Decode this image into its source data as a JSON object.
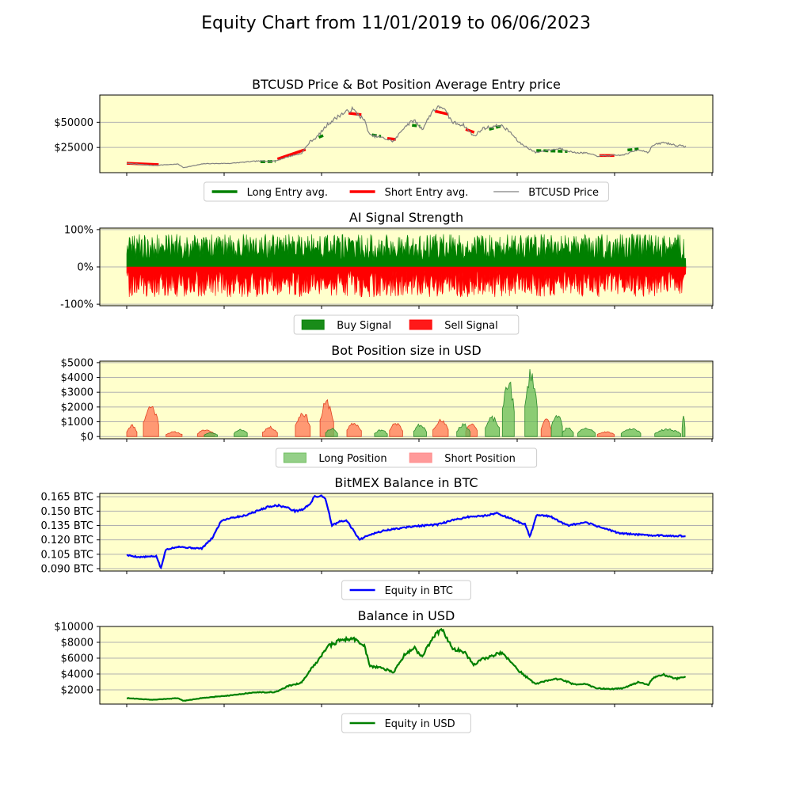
{
  "figure_title": "Equity Chart from 11/01/2019 to 06/06/2023",
  "colors": {
    "panel_background": "#ffffcc",
    "long": "#008000",
    "short": "#ff0000",
    "price": "#808080",
    "btc_equity": "#0000ff",
    "usd_equity": "#008000",
    "long_fill": "#66bb55",
    "short_fill": "#ff7755"
  },
  "chart_data": [
    {
      "type": "line",
      "title": "BTCUSD Price & Bot Position Average Entry price",
      "ylim": [
        0,
        77000
      ],
      "yticks": [
        25000,
        50000
      ],
      "ytick_labels": [
        "$25000",
        "$50000"
      ],
      "grid": "horizontal",
      "legend": {
        "placement": "below",
        "entries": [
          "Long Entry avg.",
          "Short Entry avg.",
          "BTCUSD Price"
        ]
      },
      "x": [
        "2019-11-01",
        "2020-01-01",
        "2020-03-01",
        "2020-03-13",
        "2020-05-01",
        "2020-07-01",
        "2020-09-01",
        "2020-10-15",
        "2020-11-15",
        "2020-12-15",
        "2021-01-05",
        "2021-01-20",
        "2021-02-15",
        "2021-03-15",
        "2021-04-14",
        "2021-05-12",
        "2021-05-25",
        "2021-06-20",
        "2021-07-20",
        "2021-08-15",
        "2021-09-06",
        "2021-09-25",
        "2021-10-20",
        "2021-11-10",
        "2021-12-05",
        "2022-01-01",
        "2022-01-24",
        "2022-02-15",
        "2022-03-28",
        "2022-04-20",
        "2022-05-10",
        "2022-06-18",
        "2022-07-15",
        "2022-08-15",
        "2022-09-15",
        "2022-10-15",
        "2022-11-10",
        "2022-12-15",
        "2023-01-10",
        "2023-02-15",
        "2023-03-10",
        "2023-03-20",
        "2023-04-15",
        "2023-05-15",
        "2023-06-06"
      ],
      "series": [
        {
          "name": "BTCUSD Price",
          "values": [
            9200,
            7200,
            8500,
            5000,
            8900,
            9200,
            11500,
            11500,
            16000,
            19000,
            31000,
            35000,
            48000,
            57000,
            63000,
            52000,
            37000,
            35000,
            31000,
            46000,
            52000,
            43000,
            62000,
            66000,
            50000,
            47000,
            36000,
            44000,
            47000,
            40000,
            30000,
            20000,
            22000,
            24000,
            20000,
            19500,
            16500,
            17000,
            17500,
            23000,
            20000,
            27000,
            30000,
            27000,
            26000
          ]
        },
        {
          "name": "Long Entry avg.",
          "segments": [
            {
              "x": [
                "2020-09-10",
                "2020-10-15"
              ],
              "y": [
                10800,
                11200
              ]
            },
            {
              "x": [
                "2021-01-25",
                "2021-02-05"
              ],
              "y": [
                35000,
                37000
              ]
            },
            {
              "x": [
                "2021-05-30",
                "2021-06-20"
              ],
              "y": [
                37500,
                36000
              ]
            },
            {
              "x": [
                "2021-09-01",
                "2021-09-20"
              ],
              "y": [
                47000,
                46000
              ]
            },
            {
              "x": [
                "2022-03-01",
                "2022-03-28"
              ],
              "y": [
                43000,
                46000
              ]
            },
            {
              "x": [
                "2022-06-20",
                "2022-09-01"
              ],
              "y": [
                22000,
                21000
              ]
            },
            {
              "x": [
                "2023-01-20",
                "2023-02-15"
              ],
              "y": [
                22500,
                23500
              ]
            }
          ]
        },
        {
          "name": "Short Entry avg.",
          "segments": [
            {
              "x": [
                "2019-11-01",
                "2020-01-15"
              ],
              "y": [
                9300,
                8000
              ]
            },
            {
              "x": [
                "2020-10-20",
                "2020-12-25"
              ],
              "y": [
                13500,
                23000
              ]
            },
            {
              "x": [
                "2021-04-05",
                "2021-05-05"
              ],
              "y": [
                59000,
                57500
              ]
            },
            {
              "x": [
                "2021-07-05",
                "2021-07-25"
              ],
              "y": [
                34000,
                33000
              ]
            },
            {
              "x": [
                "2021-10-25",
                "2021-11-25"
              ],
              "y": [
                61000,
                58000
              ]
            },
            {
              "x": [
                "2022-01-05",
                "2022-01-25"
              ],
              "y": [
                43000,
                40000
              ]
            },
            {
              "x": [
                "2022-11-15",
                "2022-12-20"
              ],
              "y": [
                17000,
                17000
              ]
            }
          ]
        }
      ]
    },
    {
      "type": "area",
      "title": "AI Signal Strength",
      "ylim": [
        -104,
        104
      ],
      "yticks": [
        -100,
        0,
        100
      ],
      "ytick_labels": [
        "-100%",
        "0%",
        "100%"
      ],
      "grid": "horizontal",
      "legend": {
        "placement": "below",
        "entries": [
          "Buy Signal",
          "Sell Signal"
        ]
      },
      "x": [
        "2019-11-01",
        "2023-06-06"
      ],
      "series": [
        {
          "name": "Buy Signal",
          "value_range": [
            0,
            97
          ],
          "typical": 55
        },
        {
          "name": "Sell Signal",
          "value_range": [
            -100,
            0
          ],
          "typical": -45
        }
      ]
    },
    {
      "type": "area",
      "title": "Bot Position size in USD",
      "ylim": [
        -150,
        5100
      ],
      "yticks": [
        0,
        1000,
        2000,
        3000,
        4000,
        5000
      ],
      "ytick_labels": [
        "$0",
        "$1000",
        "$2000",
        "$3000",
        "$4000",
        "$5000"
      ],
      "grid": "horizontal",
      "legend": {
        "placement": "below",
        "entries": [
          "Long Position",
          "Short Position"
        ]
      },
      "series": [
        {
          "name": "Long Position",
          "segments": [
            {
              "x": [
                "2020-05-01",
                "2020-06-01"
              ],
              "peak": 280
            },
            {
              "x": [
                "2020-07-10",
                "2020-08-10"
              ],
              "peak": 550
            },
            {
              "x": [
                "2021-02-10",
                "2021-03-10"
              ],
              "peak": 600
            },
            {
              "x": [
                "2021-06-05",
                "2021-07-05"
              ],
              "peak": 500
            },
            {
              "x": [
                "2021-09-05",
                "2021-10-05"
              ],
              "peak": 900
            },
            {
              "x": [
                "2021-12-15",
                "2022-01-15"
              ],
              "peak": 900
            },
            {
              "x": [
                "2022-02-20",
                "2022-03-25"
              ],
              "peak": 1400
            },
            {
              "x": [
                "2022-04-01",
                "2022-04-29"
              ],
              "peak": 4200
            },
            {
              "x": [
                "2022-05-24",
                "2022-06-22"
              ],
              "peak": 4800
            },
            {
              "x": [
                "2022-07-25",
                "2022-08-20"
              ],
              "peak": 1700
            },
            {
              "x": [
                "2022-08-20",
                "2022-09-15"
              ],
              "peak": 650
            },
            {
              "x": [
                "2022-09-25",
                "2022-11-05"
              ],
              "peak": 600
            },
            {
              "x": [
                "2023-01-05",
                "2023-02-20"
              ],
              "peak": 600
            },
            {
              "x": [
                "2023-03-25",
                "2023-05-25"
              ],
              "peak": 550
            },
            {
              "x": [
                "2023-05-28",
                "2023-06-04"
              ],
              "peak": 1400
            }
          ]
        },
        {
          "name": "Short Position",
          "segments": [
            {
              "x": [
                "2019-11-01",
                "2019-11-25"
              ],
              "peak": 850
            },
            {
              "x": [
                "2019-12-10",
                "2020-01-15"
              ],
              "peak": 2300
            },
            {
              "x": [
                "2020-02-01",
                "2020-03-10"
              ],
              "peak": 350
            },
            {
              "x": [
                "2020-04-15",
                "2020-05-25"
              ],
              "peak": 500
            },
            {
              "x": [
                "2020-09-15",
                "2020-10-20"
              ],
              "peak": 700
            },
            {
              "x": [
                "2020-12-01",
                "2021-01-05"
              ],
              "peak": 1800
            },
            {
              "x": [
                "2021-01-28",
                "2021-03-01"
              ],
              "peak": 2600
            },
            {
              "x": [
                "2021-04-01",
                "2021-05-05"
              ],
              "peak": 1000
            },
            {
              "x": [
                "2021-07-10",
                "2021-08-10"
              ],
              "peak": 1000
            },
            {
              "x": [
                "2021-10-20",
                "2021-11-25"
              ],
              "peak": 1200
            },
            {
              "x": [
                "2022-01-05",
                "2022-02-01"
              ],
              "peak": 1000
            },
            {
              "x": [
                "2022-07-01",
                "2022-07-25"
              ],
              "peak": 1300
            },
            {
              "x": [
                "2022-11-10",
                "2022-12-20"
              ],
              "peak": 350
            }
          ]
        }
      ]
    },
    {
      "type": "line",
      "title": "BitMEX Balance in BTC",
      "ylim": [
        0.0875,
        0.1685
      ],
      "yticks": [
        0.09,
        0.105,
        0.12,
        0.135,
        0.15,
        0.165
      ],
      "ytick_labels": [
        "0.090 BTC",
        "0.105 BTC",
        "0.120 BTC",
        "0.135 BTC",
        "0.150 BTC",
        "0.165 BTC"
      ],
      "grid": "horizontal",
      "legend": {
        "placement": "below",
        "entries": [
          "Equity in BTC"
        ]
      },
      "series": [
        {
          "name": "Equity in BTC",
          "x": [
            "2019-11-01",
            "2019-12-01",
            "2020-01-10",
            "2020-01-20",
            "2020-02-01",
            "2020-03-01",
            "2020-03-20",
            "2020-04-25",
            "2020-05-20",
            "2020-06-10",
            "2020-07-01",
            "2020-08-01",
            "2020-09-01",
            "2020-10-01",
            "2020-10-20",
            "2020-11-10",
            "2020-12-01",
            "2020-12-20",
            "2021-01-05",
            "2021-01-15",
            "2021-02-01",
            "2021-02-10",
            "2021-02-25",
            "2021-03-15",
            "2021-04-01",
            "2021-05-01",
            "2021-05-20",
            "2021-07-01",
            "2021-09-01",
            "2021-11-01",
            "2021-12-01",
            "2022-01-10",
            "2022-02-15",
            "2022-03-20",
            "2022-05-01",
            "2022-05-25",
            "2022-06-05",
            "2022-06-20",
            "2022-07-20",
            "2022-09-01",
            "2022-10-15",
            "2023-01-01",
            "2023-03-01",
            "2023-06-06"
          ],
          "values": [
            0.104,
            0.102,
            0.103,
            0.09,
            0.11,
            0.113,
            0.112,
            0.111,
            0.122,
            0.14,
            0.143,
            0.145,
            0.15,
            0.155,
            0.156,
            0.154,
            0.15,
            0.152,
            0.158,
            0.165,
            0.166,
            0.163,
            0.135,
            0.139,
            0.14,
            0.12,
            0.125,
            0.13,
            0.134,
            0.136,
            0.14,
            0.144,
            0.145,
            0.148,
            0.14,
            0.136,
            0.123,
            0.146,
            0.145,
            0.135,
            0.138,
            0.127,
            0.125,
            0.124
          ]
        }
      ]
    },
    {
      "type": "line",
      "title": "Balance in USD",
      "ylim": [
        200,
        10000
      ],
      "yticks": [
        2000,
        4000,
        6000,
        8000,
        10000
      ],
      "ytick_labels": [
        "$2000",
        "$4000",
        "$6000",
        "$8000",
        "$10000"
      ],
      "grid": "horizontal",
      "legend": {
        "placement": "below",
        "entries": [
          "Equity in USD"
        ]
      },
      "series": [
        {
          "name": "Equity in USD",
          "x": [
            "2019-11-01",
            "2020-01-01",
            "2020-03-01",
            "2020-03-13",
            "2020-05-01",
            "2020-07-01",
            "2020-09-01",
            "2020-10-15",
            "2020-11-15",
            "2020-12-15",
            "2021-01-05",
            "2021-01-20",
            "2021-02-15",
            "2021-03-15",
            "2021-04-14",
            "2021-05-12",
            "2021-05-25",
            "2021-06-20",
            "2021-07-20",
            "2021-08-15",
            "2021-09-06",
            "2021-09-25",
            "2021-10-20",
            "2021-11-10",
            "2021-12-05",
            "2022-01-01",
            "2022-01-24",
            "2022-02-15",
            "2022-03-28",
            "2022-04-20",
            "2022-05-10",
            "2022-06-18",
            "2022-07-15",
            "2022-08-15",
            "2022-09-15",
            "2022-10-15",
            "2022-11-10",
            "2022-12-15",
            "2023-01-10",
            "2023-02-15",
            "2023-03-10",
            "2023-03-20",
            "2023-04-15",
            "2023-05-15",
            "2023-06-06"
          ],
          "values": [
            960,
            740,
            950,
            600,
            1000,
            1300,
            1700,
            1700,
            2500,
            2900,
            4500,
            5500,
            7500,
            8200,
            8500,
            7600,
            5000,
            4800,
            4200,
            6500,
            7300,
            6200,
            8700,
            9700,
            7200,
            6800,
            5200,
            5900,
            6700,
            5600,
            4400,
            2700,
            3200,
            3400,
            2700,
            2700,
            2200,
            2100,
            2200,
            3000,
            2600,
            3500,
            3900,
            3400,
            3600
          ]
        }
      ]
    }
  ]
}
